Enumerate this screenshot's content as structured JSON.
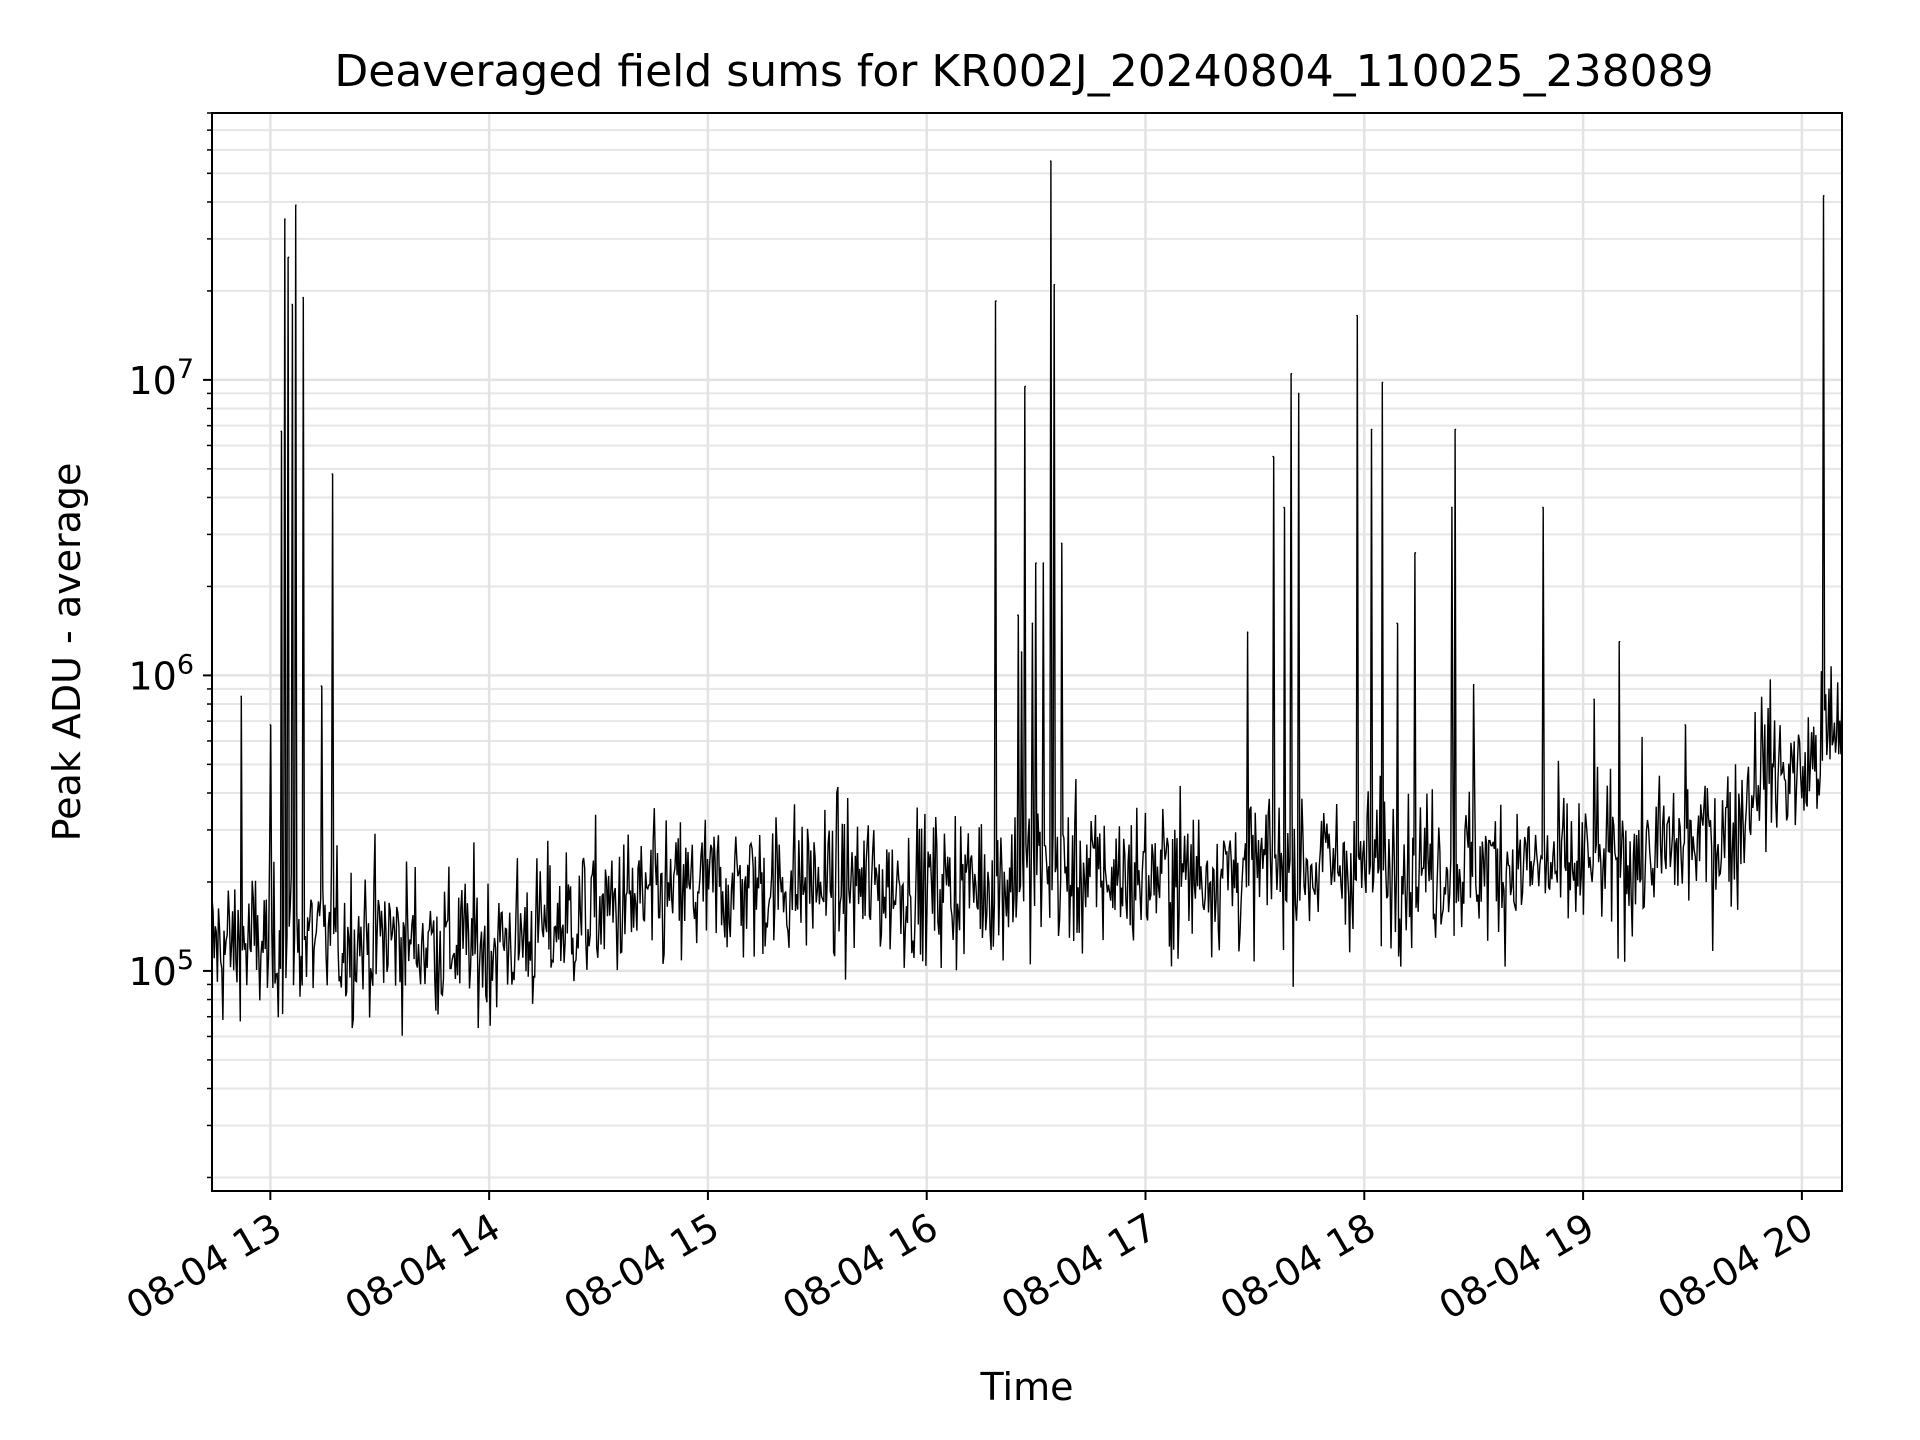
{
  "chart_data": {
    "type": "line",
    "title": "Deaveraged field sums for KR002J_20240804_110025_238089",
    "xlabel": "Time",
    "ylabel": "Peak ADU - average",
    "yscale": "log",
    "ylim": [
      18000,
      80000000
    ],
    "xlim": [
      "2024-08-04 12:44",
      "2024-08-04 20:11"
    ],
    "grid": true,
    "x_ticks": [
      "08-04 13",
      "08-04 14",
      "08-04 15",
      "08-04 16",
      "08-04 17",
      "08-04 18",
      "08-04 19",
      "08-04 20"
    ],
    "y_ticks": [
      "10^5",
      "10^6",
      "10^7"
    ],
    "series": [
      {
        "color": "#000000",
        "baseline": [
          {
            "x": "2024-08-04 12:44",
            "y": 120000
          },
          {
            "x": "2024-08-04 13:30",
            "y": 130000
          },
          {
            "x": "2024-08-04 14:00",
            "y": 120000
          },
          {
            "x": "2024-08-04 14:30",
            "y": 160000
          },
          {
            "x": "2024-08-04 15:00",
            "y": 190000
          },
          {
            "x": "2024-08-04 15:30",
            "y": 200000
          },
          {
            "x": "2024-08-04 16:00",
            "y": 190000
          },
          {
            "x": "2024-08-04 16:30",
            "y": 210000
          },
          {
            "x": "2024-08-04 17:00",
            "y": 210000
          },
          {
            "x": "2024-08-04 17:30",
            "y": 220000
          },
          {
            "x": "2024-08-04 18:00",
            "y": 230000
          },
          {
            "x": "2024-08-04 18:30",
            "y": 230000
          },
          {
            "x": "2024-08-04 19:00",
            "y": 220000
          },
          {
            "x": "2024-08-04 19:30",
            "y": 270000
          },
          {
            "x": "2024-08-04 19:42",
            "y": 300000
          },
          {
            "x": "2024-08-04 19:48",
            "y": 500000
          },
          {
            "x": "2024-08-04 20:00",
            "y": 450000
          },
          {
            "x": "2024-08-04 20:11",
            "y": 700000
          }
        ],
        "spikes": [
          {
            "x": "2024-08-04 12:52",
            "y": 850000
          },
          {
            "x": "2024-08-04 13:00",
            "y": 680000
          },
          {
            "x": "2024-08-04 13:03",
            "y": 6700000
          },
          {
            "x": "2024-08-04 13:04",
            "y": 35000000
          },
          {
            "x": "2024-08-04 13:05",
            "y": 26000000
          },
          {
            "x": "2024-08-04 13:06",
            "y": 18000000
          },
          {
            "x": "2024-08-04 13:07",
            "y": 39000000
          },
          {
            "x": "2024-08-04 13:09",
            "y": 19000000
          },
          {
            "x": "2024-08-04 13:14",
            "y": 920000
          },
          {
            "x": "2024-08-04 13:17",
            "y": 4800000
          },
          {
            "x": "2024-08-04 16:19",
            "y": 18500000
          },
          {
            "x": "2024-08-04 16:25",
            "y": 1600000
          },
          {
            "x": "2024-08-04 16:26",
            "y": 1200000
          },
          {
            "x": "2024-08-04 16:27",
            "y": 9500000
          },
          {
            "x": "2024-08-04 16:29",
            "y": 1500000
          },
          {
            "x": "2024-08-04 16:30",
            "y": 2400000
          },
          {
            "x": "2024-08-04 16:32",
            "y": 2400000
          },
          {
            "x": "2024-08-04 16:34",
            "y": 55000000
          },
          {
            "x": "2024-08-04 16:35",
            "y": 21000000
          },
          {
            "x": "2024-08-04 16:37",
            "y": 2800000
          },
          {
            "x": "2024-08-04 17:28",
            "y": 1400000
          },
          {
            "x": "2024-08-04 17:35",
            "y": 5500000
          },
          {
            "x": "2024-08-04 17:38",
            "y": 3700000
          },
          {
            "x": "2024-08-04 17:40",
            "y": 10500000
          },
          {
            "x": "2024-08-04 17:42",
            "y": 9000000
          },
          {
            "x": "2024-08-04 17:58",
            "y": 16500000
          },
          {
            "x": "2024-08-04 18:02",
            "y": 6800000
          },
          {
            "x": "2024-08-04 18:05",
            "y": 9800000
          },
          {
            "x": "2024-08-04 18:09",
            "y": 1500000
          },
          {
            "x": "2024-08-04 18:14",
            "y": 2600000
          },
          {
            "x": "2024-08-04 18:24",
            "y": 3700000
          },
          {
            "x": "2024-08-04 18:25",
            "y": 6800000
          },
          {
            "x": "2024-08-04 18:30",
            "y": 930000
          },
          {
            "x": "2024-08-04 18:49",
            "y": 3700000
          },
          {
            "x": "2024-08-04 19:03",
            "y": 830000
          },
          {
            "x": "2024-08-04 19:10",
            "y": 1300000
          },
          {
            "x": "2024-08-04 19:28",
            "y": 680000
          },
          {
            "x": "2024-08-04 20:06",
            "y": 42000000
          }
        ]
      }
    ]
  }
}
